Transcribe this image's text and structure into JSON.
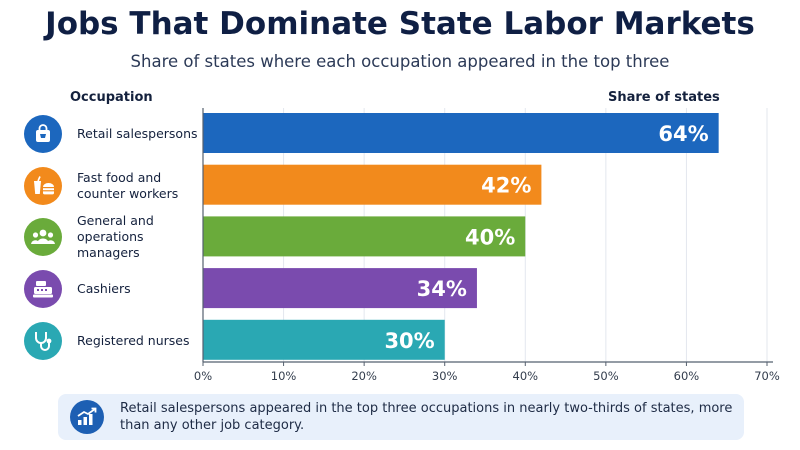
{
  "chart_data": {
    "type": "bar",
    "orientation": "horizontal",
    "title": "Jobs That Dominate State Labor Markets",
    "subtitle": "Share of states where each occupation appeared in the top three",
    "category_header": "Occupation",
    "value_header": "Share of states",
    "categories": [
      "Retail salespersons",
      "Fast food and\ncounter workers",
      "General and\noperations managers",
      "Cashiers",
      "Registered nurses"
    ],
    "values": [
      64,
      42,
      40,
      34,
      30
    ],
    "data_labels": [
      "64%",
      "42%",
      "40%",
      "34%",
      "30%"
    ],
    "bar_colors": [
      "#1c67be",
      "#f28a1c",
      "#6aab3b",
      "#7a4bae",
      "#2aa8b3"
    ],
    "icons": [
      "shopping-bag-icon",
      "fast-food-icon",
      "team-icon",
      "cash-register-icon",
      "stethoscope-icon"
    ],
    "xlim": [
      0,
      70
    ],
    "xticks": [
      0,
      10,
      20,
      30,
      40,
      50,
      60,
      70
    ],
    "xtick_labels": [
      "0%",
      "10%",
      "20%",
      "30%",
      "40%",
      "50%",
      "60%",
      "70%"
    ],
    "grid": true
  },
  "callout": {
    "icon": "growth-chart-icon",
    "text": "Retail salespersons appeared in the top three occupations in nearly two-thirds of states, more than any other job category."
  }
}
